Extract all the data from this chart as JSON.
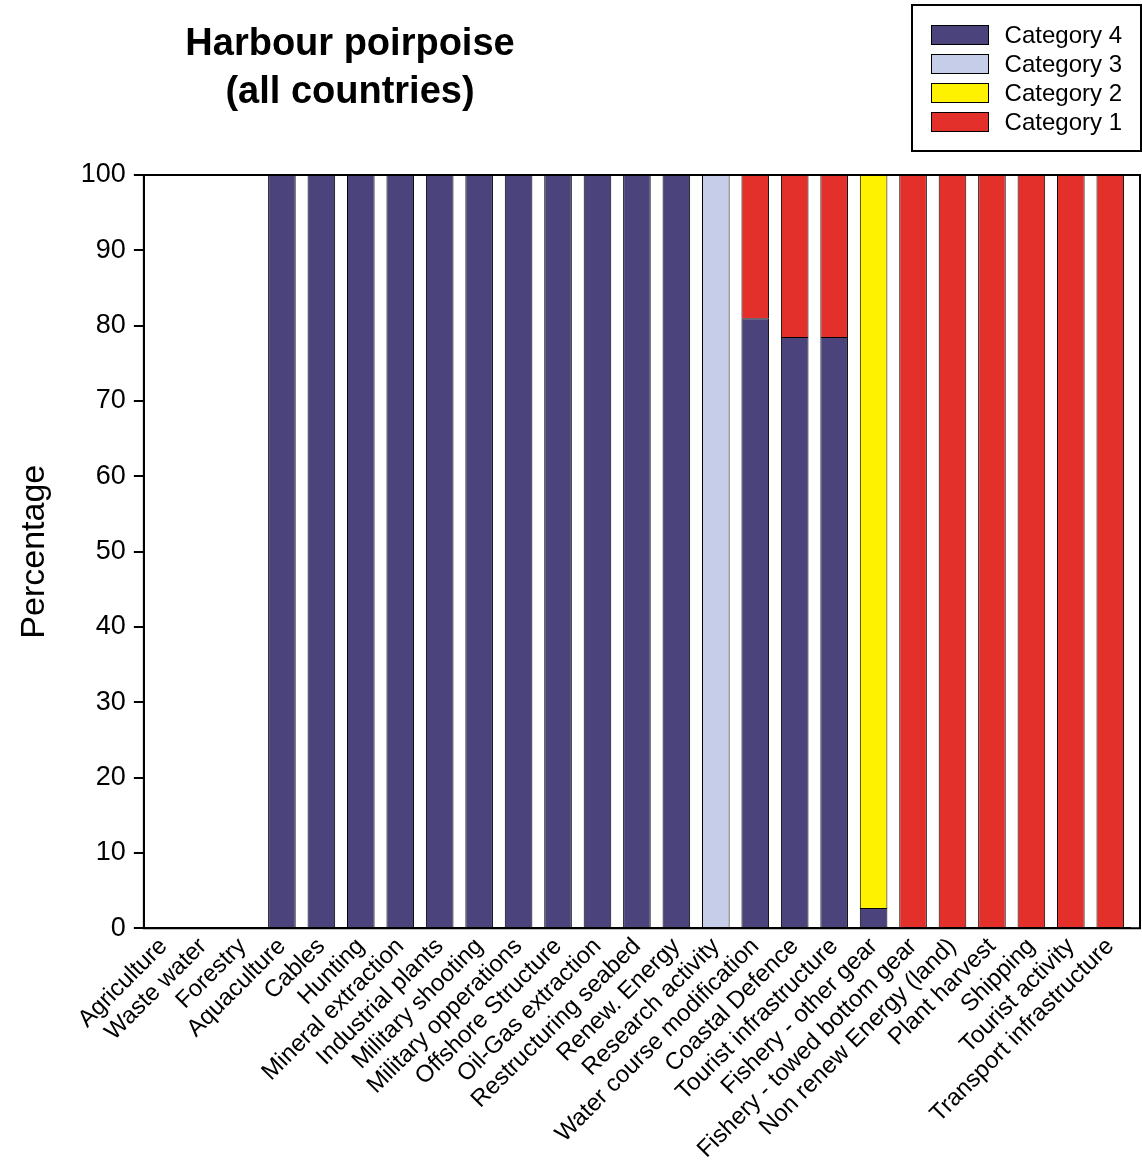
{
  "chart_data": {
    "type": "bar",
    "title": "Harbour poirpoise\n(all countries)",
    "ylabel": "Percentage",
    "stacked": true,
    "legend": "top right",
    "grid": false,
    "categories": [
      "Agriculture",
      "Waste water",
      "Forestry",
      "Aquaculture",
      "Cables",
      "Hunting",
      "Mineral extraction",
      "Industrial plants",
      "Military shooting",
      "Military opperations",
      "Offshore Structure",
      "Oil-Gas extraction",
      "Restructuring seabed",
      "Renew. Energy",
      "Research activity",
      "Water course modification",
      "Coastal Defence",
      "Tourist infrastructure",
      "Fishery - other gear",
      "Fishery - towed bottom gear",
      "Non renew Energy (land)",
      "Plant harvest",
      "Shipping",
      "Tourist activity",
      "Transport infrastructure"
    ],
    "ylim": [
      0,
      100
    ],
    "yticks": [
      0,
      10,
      20,
      30,
      40,
      50,
      60,
      70,
      80,
      90,
      100
    ],
    "series": [
      {
        "name": "Category 4",
        "color": "#4b437c",
        "values": [
          0,
          0,
          0,
          100,
          100,
          100,
          100,
          100,
          100,
          100,
          100,
          100,
          100,
          100,
          0,
          81,
          78.5,
          78.5,
          2.7,
          0,
          0,
          0,
          0,
          0,
          0
        ]
      },
      {
        "name": "Category 3",
        "color": "#c6cde8",
        "values": [
          0,
          0,
          0,
          0,
          0,
          0,
          0,
          0,
          0,
          0,
          0,
          0,
          0,
          0,
          100,
          0,
          0,
          0,
          0,
          0,
          0,
          0,
          0,
          0,
          0
        ]
      },
      {
        "name": "Category 2",
        "color": "#fff200",
        "values": [
          0,
          0,
          0,
          0,
          0,
          0,
          0,
          0,
          0,
          0,
          0,
          0,
          0,
          0,
          0,
          0,
          0,
          0,
          97.3,
          0,
          0,
          0,
          0,
          0,
          0
        ]
      },
      {
        "name": "Category 1",
        "color": "#e3302a",
        "values": [
          0,
          0,
          0,
          0,
          0,
          0,
          0,
          0,
          0,
          0,
          0,
          0,
          0,
          0,
          0,
          19,
          21.5,
          21.5,
          0,
          100,
          100,
          100,
          100,
          100,
          100
        ]
      }
    ]
  }
}
